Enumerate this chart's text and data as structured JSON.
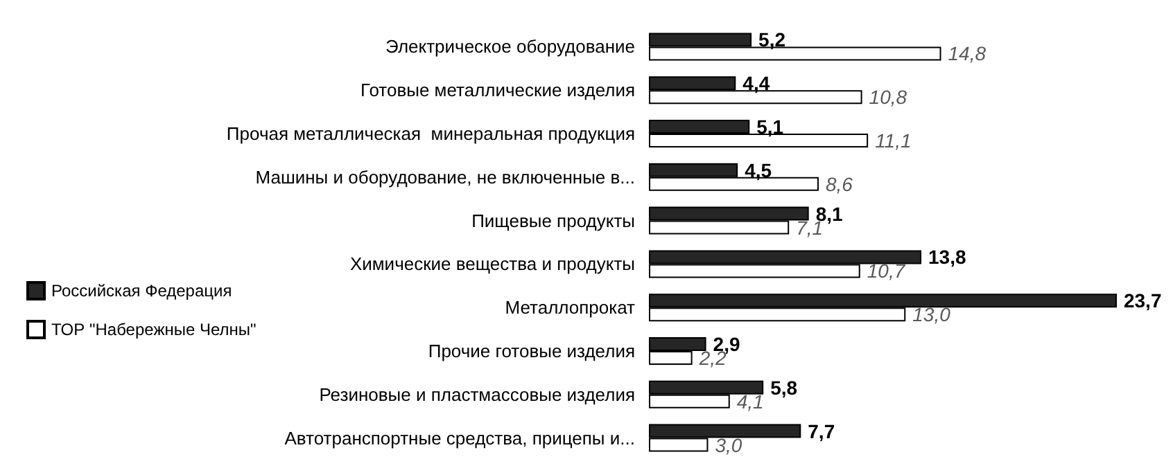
{
  "chart_data": {
    "type": "bar",
    "orientation": "horizontal",
    "legend": "left",
    "categories": [
      "Электрическое оборудование",
      "Готовые металлические изделия",
      "Прочая металлическая  минеральная продукция",
      "Машины и оборудование, не включенные в...",
      "Пищевые продукты",
      "Химические вещества и продукты",
      "Металлопрокат",
      "Прочие готовые изделия",
      "Резиновые и пластмассовые изделия",
      "Автотранспортные средства, прицепы и..."
    ],
    "series": [
      {
        "name": "Российская Федерация",
        "color": "#262626",
        "values": [
          5.2,
          4.4,
          5.1,
          4.5,
          8.1,
          13.8,
          23.7,
          2.9,
          5.8,
          7.7
        ],
        "value_labels": [
          "5,2",
          "4,4",
          "5,1",
          "4,5",
          "8,1",
          "13,8",
          "23,7",
          "2,9",
          "5,8",
          "7,7"
        ]
      },
      {
        "name": "ТОР \"Набережные Челны\"",
        "color": "#ffffff",
        "values": [
          14.8,
          10.8,
          11.1,
          8.6,
          7.1,
          10.7,
          13.0,
          2.2,
          4.1,
          3.0
        ],
        "value_labels": [
          "14,8",
          "10,8",
          "11,1",
          "8,6",
          "7,1",
          "10,7",
          "13,0",
          "2,2",
          "4,1",
          "3,0"
        ]
      }
    ]
  }
}
